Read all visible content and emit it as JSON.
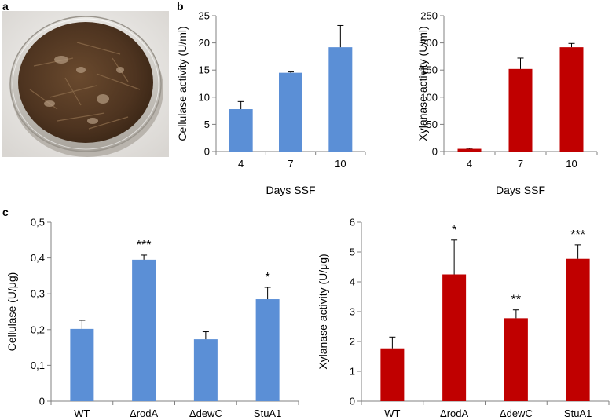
{
  "panels": {
    "a": "a",
    "b": "b",
    "c": "c"
  },
  "photo": {
    "alt": "Petri dish with solid-state fermentation substrate"
  },
  "colors": {
    "blue": "#5b8fd6",
    "red": "#c00000",
    "axis": "#808080",
    "error_bar": "#000000"
  },
  "chart_data": [
    {
      "id": "b-cellulase",
      "type": "bar",
      "categories": [
        "4",
        "7",
        "10"
      ],
      "values": [
        7.8,
        14.5,
        19.2
      ],
      "errors": [
        1.4,
        0.15,
        4.0
      ],
      "ylim": [
        0,
        25
      ],
      "yticks": [
        "0",
        "5",
        "10",
        "15",
        "20",
        "25"
      ],
      "ylabel": "Cellulase activity (U/ml)",
      "xlabel": "Days SSF",
      "color": "#5b8fd6",
      "significance": [
        "",
        "",
        ""
      ]
    },
    {
      "id": "b-xylanase",
      "type": "bar",
      "categories": [
        "4",
        "7",
        "10"
      ],
      "values": [
        5,
        152,
        192
      ],
      "errors": [
        1,
        20,
        7
      ],
      "ylim": [
        0,
        250
      ],
      "yticks": [
        "0",
        "50",
        "100",
        "150",
        "200",
        "250"
      ],
      "ylabel": "Xylanase activity (U/ml)",
      "xlabel": "Days SSF",
      "color": "#c00000",
      "significance": [
        "",
        "",
        ""
      ]
    },
    {
      "id": "c-cellulase",
      "type": "bar",
      "categories": [
        "WT",
        "ΔrodA",
        "ΔdewC",
        "StuA1"
      ],
      "values": [
        0.202,
        0.395,
        0.173,
        0.285
      ],
      "errors": [
        0.024,
        0.013,
        0.021,
        0.033
      ],
      "ylim": [
        0,
        0.5
      ],
      "yticks": [
        "0",
        "0,1",
        "0,2",
        "0,3",
        "0,4",
        "0,5"
      ],
      "ylabel": "Cellulase (U/μg)",
      "xlabel": "",
      "color": "#5b8fd6",
      "significance": [
        "",
        "***",
        "",
        "*"
      ]
    },
    {
      "id": "c-xylanase",
      "type": "bar",
      "categories": [
        "WT",
        "ΔrodA",
        "ΔdewC",
        "StuA1"
      ],
      "values": [
        1.77,
        4.25,
        2.78,
        4.77
      ],
      "errors": [
        0.38,
        1.15,
        0.28,
        0.47
      ],
      "ylim": [
        0,
        6
      ],
      "yticks": [
        "0",
        "1",
        "2",
        "3",
        "4",
        "5",
        "6"
      ],
      "ylabel": "Xylanase activity (U/μg)",
      "xlabel": "",
      "color": "#c00000",
      "significance": [
        "",
        "*",
        "**",
        "***"
      ]
    }
  ]
}
